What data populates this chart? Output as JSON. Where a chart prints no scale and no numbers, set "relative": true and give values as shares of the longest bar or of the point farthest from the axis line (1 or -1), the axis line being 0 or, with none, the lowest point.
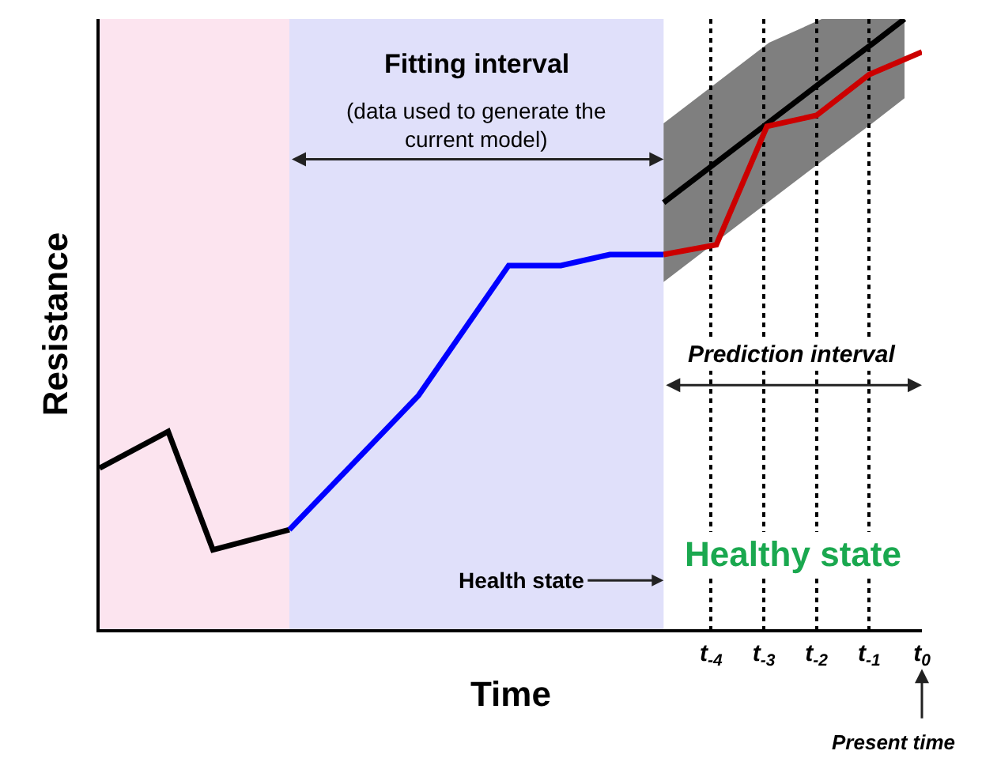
{
  "chart_data": {
    "type": "line",
    "relative": true,
    "xlabel": "Time",
    "ylabel": "Resistance",
    "xlim": [
      -15.6,
      0
    ],
    "xticks": [
      {
        "value": -4,
        "label": "t$_{-4}$"
      },
      {
        "value": -3,
        "label": "t$_{-3}$"
      },
      {
        "value": -2,
        "label": "t$_{-2}$"
      },
      {
        "value": -1,
        "label": "t$_{-1}$"
      },
      {
        "value": 0,
        "label": "t$_{0}$"
      }
    ],
    "tick_labels": "x",
    "grid": "x",
    "series": [
      {
        "color": "#000000",
        "x": [
          -15.6,
          -14.3,
          -13.45,
          -12.0
        ],
        "values": [
          0.264,
          0.324,
          0.13,
          0.163
        ]
      },
      {
        "color": "#0000ff",
        "x": [
          -12.0,
          -9.55,
          -7.84,
          -6.85,
          -5.92,
          -4.9
        ],
        "values": [
          0.163,
          0.383,
          0.596,
          0.596,
          0.614,
          0.614
        ]
      },
      {
        "color": "#000000",
        "x": [
          -4.9,
          -3.9,
          -2.9,
          -1.9,
          -0.9,
          -0.33
        ],
        "values": [
          0.699,
          0.765,
          0.831,
          0.897,
          0.962,
          1.0
        ],
        "lower": [
          0.569,
          0.635,
          0.701,
          0.767,
          0.832,
          0.87
        ],
        "upper": [
          0.829,
          0.895,
          0.961,
          1.0,
          1.0,
          1.0
        ]
      },
      {
        "color": "#cc0000",
        "x": [
          -4.9,
          -3.9,
          -2.94,
          -2.0,
          -1.0,
          0
        ],
        "values": [
          0.614,
          0.63,
          0.824,
          0.842,
          0.909,
          0.946
        ]
      }
    ],
    "bands": [
      {
        "axis": "x",
        "from": -15.6,
        "to": -12.0,
        "color": "#fce4ef"
      },
      {
        "axis": "x",
        "from": -12.0,
        "to": -4.9,
        "color": "#e0e0fa"
      }
    ],
    "annotations": [
      "Fitting interval",
      "(data used to generate the current model)",
      "Prediction interval",
      "Health state",
      "Healthy state",
      "Present time"
    ]
  }
}
